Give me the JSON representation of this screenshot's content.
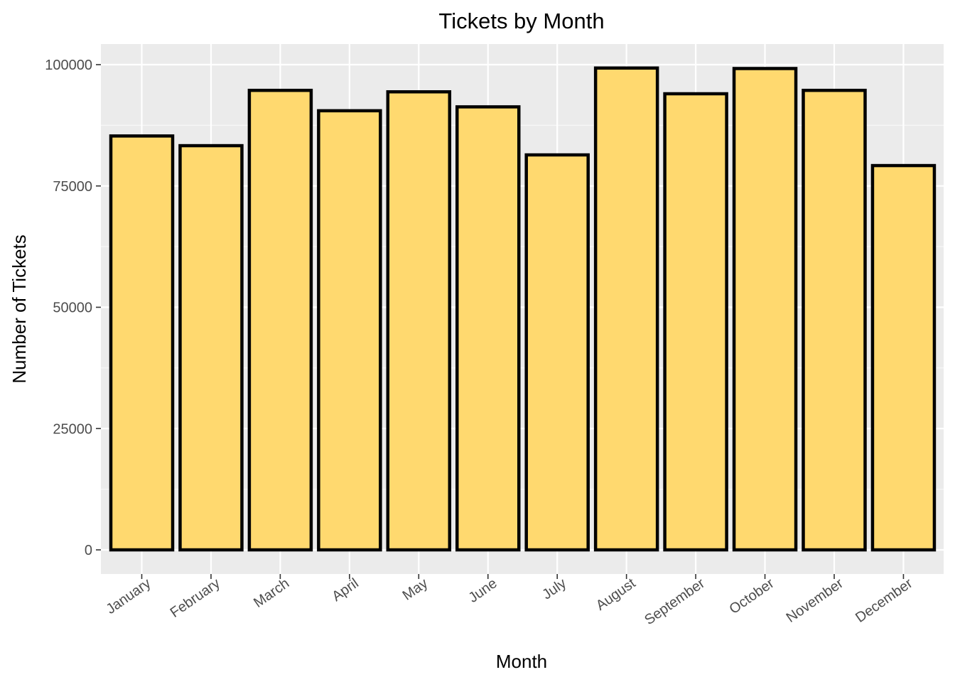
{
  "chart_data": {
    "type": "bar",
    "title": "Tickets by Month",
    "xlabel": "Month",
    "ylabel": "Number of Tickets",
    "categories": [
      "January",
      "February",
      "March",
      "April",
      "May",
      "June",
      "July",
      "August",
      "September",
      "October",
      "November",
      "December"
    ],
    "values": [
      85300,
      83300,
      94700,
      90500,
      94400,
      91300,
      81400,
      99300,
      94000,
      99200,
      94700,
      79200
    ],
    "ylim": [
      0,
      100000
    ],
    "yticks": [
      0,
      25000,
      50000,
      75000,
      100000
    ],
    "ytick_labels": [
      "0",
      "25000",
      "50000",
      "75000",
      "100000"
    ],
    "grid": true,
    "legend": "none",
    "colors": {
      "bar_fill": "#FFD96F",
      "bar_stroke": "#000000",
      "panel_background": "#EBEBEB",
      "grid_major": "#FFFFFF",
      "tick_text": "#4D4D4D"
    }
  }
}
